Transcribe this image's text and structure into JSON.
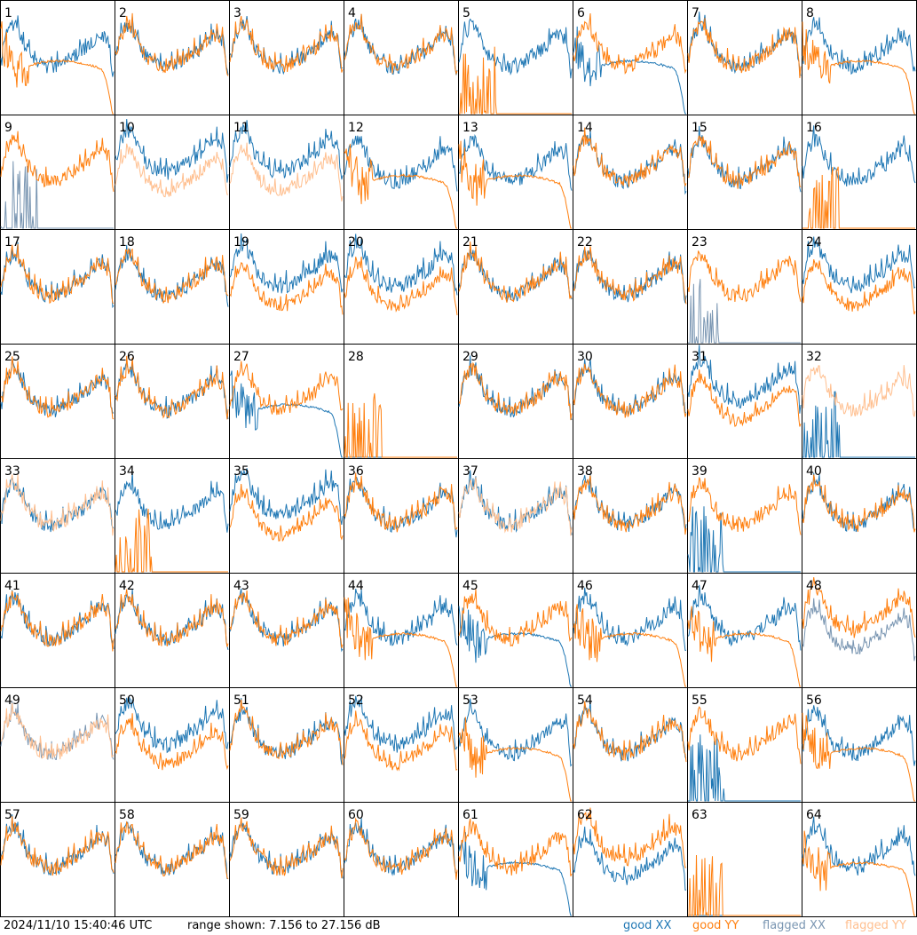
{
  "chart_data": {
    "type": "line",
    "panels": 64,
    "layout": {
      "rows": 8,
      "cols": 8
    },
    "panel_labels": [
      "1",
      "2",
      "3",
      "4",
      "5",
      "6",
      "7",
      "8",
      "9",
      "10",
      "11",
      "12",
      "13",
      "14",
      "15",
      "16",
      "17",
      "18",
      "19",
      "20",
      "21",
      "22",
      "23",
      "24",
      "25",
      "26",
      "27",
      "28",
      "29",
      "30",
      "31",
      "32",
      "33",
      "34",
      "35",
      "36",
      "37",
      "38",
      "39",
      "40",
      "41",
      "42",
      "43",
      "44",
      "45",
      "46",
      "47",
      "48",
      "49",
      "50",
      "51",
      "52",
      "53",
      "54",
      "55",
      "56",
      "57",
      "58",
      "59",
      "60",
      "61",
      "62",
      "63",
      "64"
    ],
    "ylim": [
      7.156,
      27.156
    ],
    "yunit": "dB",
    "legend": [
      {
        "name": "good XX",
        "color": "#1f77b4"
      },
      {
        "name": "good YY",
        "color": "#ff7f0e"
      },
      {
        "name": "flagged XX",
        "color": "#7a96b2"
      },
      {
        "name": "flagged YY",
        "color": "#ffbf8f"
      }
    ],
    "legend_position": "bottom-right",
    "flagged": {
      "xx": [
        "9",
        "23",
        "48",
        "49"
      ],
      "yy": [
        "10",
        "11",
        "32",
        "33",
        "37",
        "49"
      ]
    },
    "profiles": {
      "normal": [
        "2",
        "3",
        "4",
        "7",
        "14",
        "15",
        "17",
        "18",
        "21",
        "22",
        "25",
        "26",
        "29",
        "30",
        "33",
        "36",
        "37",
        "38",
        "40",
        "41",
        "42",
        "43",
        "49",
        "51",
        "54",
        "57",
        "58",
        "59",
        "60"
      ],
      "xx_high": [
        "10",
        "11",
        "19",
        "20",
        "24",
        "31",
        "35",
        "50",
        "52"
      ],
      "yy_high": [
        "48",
        "62"
      ],
      "yy_droop": [
        "1",
        "8",
        "12",
        "13",
        "44",
        "46",
        "47",
        "53",
        "56",
        "64"
      ],
      "xx_droop": [
        "6",
        "27",
        "45",
        "61"
      ],
      "xx_only": [
        "5",
        "16",
        "34"
      ],
      "yy_only": [
        "9",
        "23",
        "32",
        "39",
        "55"
      ],
      "dead": [
        "28",
        "63"
      ]
    }
  },
  "footer": {
    "timestamp": "2024/11/10 15:40:46 UTC",
    "range_text": "range shown: 7.156 to 27.156 dB",
    "legend_good_xx": "good XX",
    "legend_good_yy": "good YY",
    "legend_flagged_xx": "flagged XX",
    "legend_flagged_yy": "flagged YY",
    "colors": {
      "good_xx": "#1f77b4",
      "good_yy": "#ff7f0e",
      "flagged_xx": "#7a96b2",
      "flagged_yy": "#ffbf8f"
    }
  }
}
